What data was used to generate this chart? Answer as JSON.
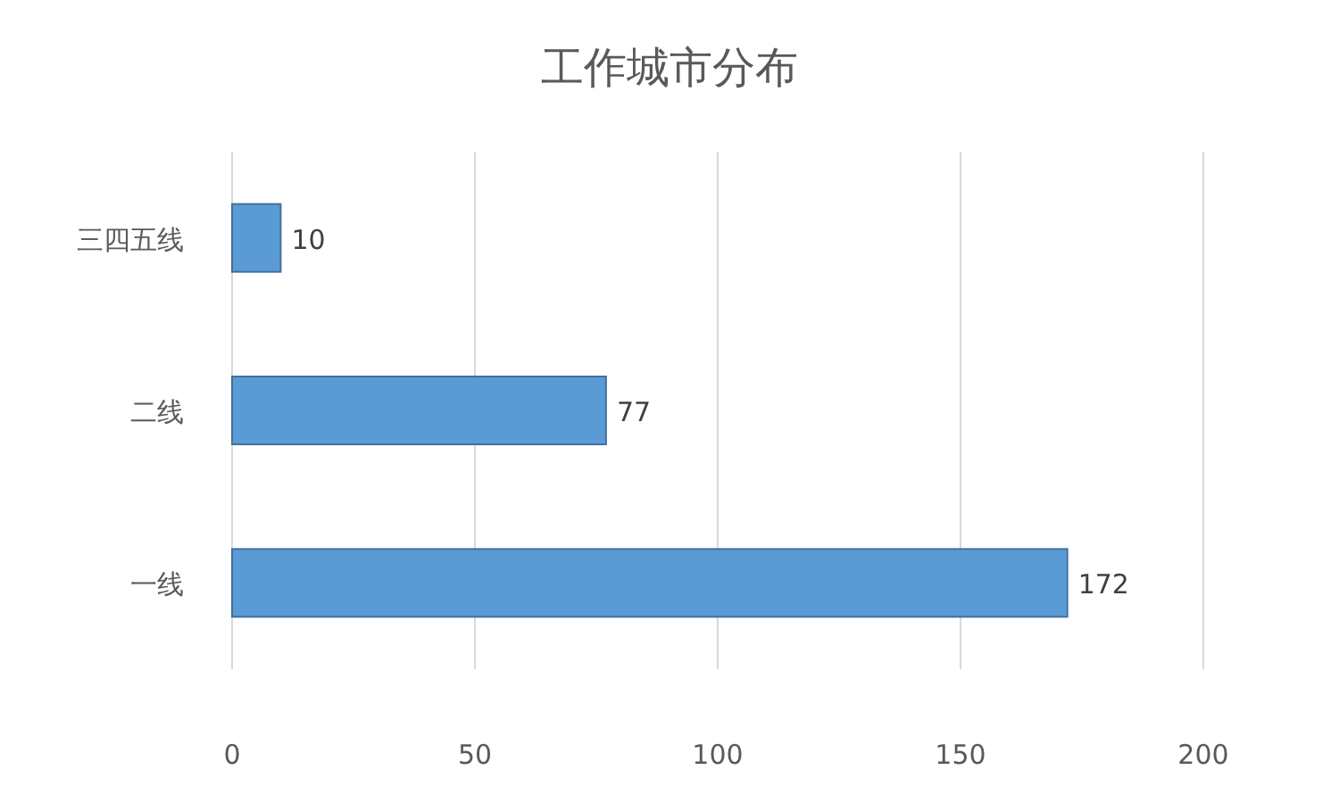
{
  "chart_data": {
    "type": "bar",
    "orientation": "horizontal",
    "title": "工作城市分布",
    "categories": [
      "三四五线",
      "二线",
      "一线"
    ],
    "values": [
      10,
      77,
      172
    ],
    "color": "#5b9bd5",
    "xlim": [
      0,
      200
    ],
    "xticks": [
      0,
      50,
      100,
      150,
      200
    ],
    "grid": "x",
    "data_labels": true
  }
}
